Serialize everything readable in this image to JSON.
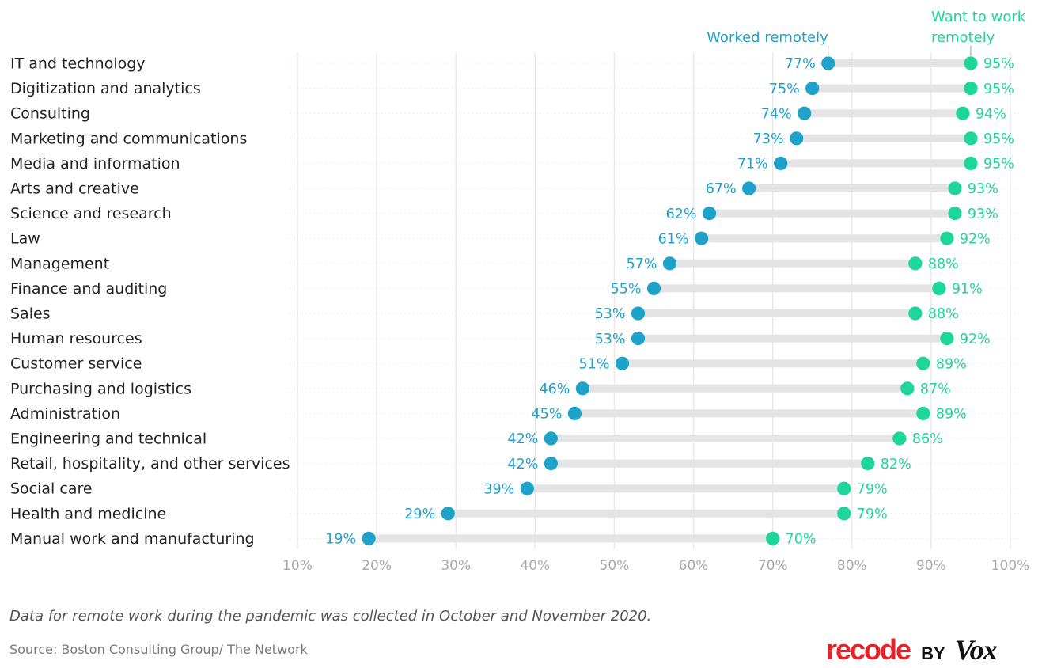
{
  "chart_data": {
    "type": "dumbbell",
    "categories": [
      "IT and technology",
      "Digitization and analytics",
      "Consulting",
      "Marketing and communications",
      "Media and information",
      "Arts and creative",
      "Science and research",
      "Law",
      "Management",
      "Finance and auditing",
      "Sales",
      "Human resources",
      "Customer service",
      "Purchasing and logistics",
      "Administration",
      "Engineering and technical",
      "Retail, hospitality, and other services",
      "Social care",
      "Health and medicine",
      "Manual work and manufacturing"
    ],
    "series": [
      {
        "name": "Worked remotely",
        "color": "#1fa2c9",
        "values": [
          77,
          75,
          74,
          73,
          71,
          67,
          62,
          61,
          57,
          55,
          53,
          53,
          51,
          46,
          45,
          42,
          42,
          39,
          29,
          19
        ],
        "labels": [
          "77%",
          "75%",
          "74%",
          "73%",
          "71%",
          "67%",
          "62%",
          "61%",
          "57%",
          "55%",
          "53%",
          "53%",
          "51%",
          "46%",
          "45%",
          "42%",
          "42%",
          "39%",
          "29%",
          "19%"
        ]
      },
      {
        "name": "Want to work remotely",
        "color": "#1ed69a",
        "values": [
          95,
          95,
          94,
          95,
          95,
          93,
          93,
          92,
          88,
          91,
          88,
          92,
          89,
          87,
          89,
          86,
          82,
          79,
          79,
          70
        ],
        "labels": [
          "95%",
          "95%",
          "94%",
          "95%",
          "95%",
          "93%",
          "93%",
          "92%",
          "88%",
          "91%",
          "88%",
          "92%",
          "89%",
          "87%",
          "89%",
          "86%",
          "82%",
          "79%",
          "79%",
          "70%"
        ]
      }
    ],
    "legend": {
      "worked_label": "Worked remotely",
      "want_label_line1": "Want to work",
      "want_label_line2": "remotely"
    },
    "xlim": [
      10,
      100
    ],
    "xticks": [
      10,
      20,
      30,
      40,
      50,
      60,
      70,
      80,
      90,
      100
    ],
    "xtick_labels": [
      "10%",
      "20%",
      "30%",
      "40%",
      "50%",
      "60%",
      "70%",
      "80%",
      "90%",
      "100%"
    ],
    "connector_color": "#e4e4e4",
    "grid": true,
    "grid_color": "#e8e8e8",
    "xlabel": "",
    "ylabel": ""
  },
  "footer": {
    "note": "Data for remote work during the pandemic was collected in October and November 2020.",
    "source": "Source: Boston Consulting Group/ The Network"
  },
  "brand": {
    "recode": "recode",
    "by": "BY",
    "vox": "Vox"
  }
}
